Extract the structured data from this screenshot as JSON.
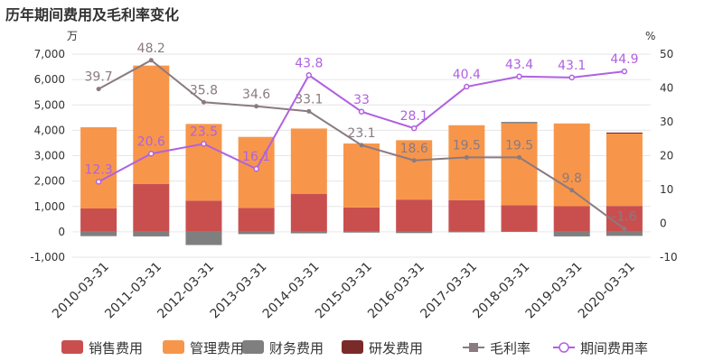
{
  "title": "历年期间费用及毛利率变化",
  "chart_data": {
    "type": "bar",
    "title": "历年期间费用及毛利率变化",
    "categories": [
      "2010-03-31",
      "2011-03-31",
      "2012-03-31",
      "2013-03-31",
      "2014-03-31",
      "2015-03-31",
      "2016-03-31",
      "2017-03-31",
      "2018-03-31",
      "2019-03-31",
      "2020-03-31"
    ],
    "y_left": {
      "unit": "万",
      "ylim": [
        -1000,
        7000
      ],
      "ticks": [
        "-1,000",
        "0",
        "1,000",
        "2,000",
        "3,000",
        "4,000",
        "5,000",
        "6,000",
        "7,000"
      ]
    },
    "y_right": {
      "unit": "%",
      "ylim": [
        -10,
        50
      ],
      "ticks": [
        "-10",
        "0",
        "10",
        "20",
        "30",
        "40",
        "50"
      ]
    },
    "stacked": true,
    "grid": true,
    "legend_position": "bottom",
    "series": [
      {
        "name": "销售费用",
        "kind": "bar",
        "color": "#c94f4f",
        "values": [
          920,
          1880,
          1230,
          940,
          1500,
          960,
          1270,
          1250,
          1050,
          1010,
          1020
        ]
      },
      {
        "name": "管理费用",
        "kind": "bar",
        "color": "#f7964a",
        "values": [
          3200,
          4670,
          3020,
          2800,
          2570,
          2520,
          2340,
          2950,
          3220,
          3260,
          2850
        ]
      },
      {
        "name": "财务费用",
        "kind": "bar",
        "color": "#7f7f7f",
        "values": [
          -170,
          -180,
          -520,
          -90,
          -60,
          -30,
          -50,
          -20,
          60,
          -180,
          -160
        ]
      },
      {
        "name": "研发费用",
        "kind": "bar",
        "color": "#7b2a2a",
        "values": [
          0,
          0,
          0,
          0,
          0,
          0,
          0,
          0,
          0,
          0,
          40
        ]
      },
      {
        "name": "毛利率",
        "kind": "line",
        "axis": "right",
        "color": "#8a7a82",
        "values": [
          39.7,
          48.2,
          35.8,
          34.6,
          33.1,
          23.1,
          18.6,
          19.5,
          19.5,
          9.8,
          -1.6
        ],
        "labels": [
          "39.7",
          "48.2",
          "35.8",
          "34.6",
          "33.1",
          "23.1",
          "18.6",
          "19.5",
          "19.5",
          "9.8",
          "-1.6"
        ]
      },
      {
        "name": "期间费用率",
        "kind": "line",
        "axis": "right",
        "color": "#b061e0",
        "values": [
          12.3,
          20.6,
          23.5,
          16.1,
          43.8,
          33,
          28.1,
          40.4,
          43.4,
          43.1,
          44.9
        ],
        "labels": [
          "12.3",
          "20.6",
          "23.5",
          "16.1",
          "43.8",
          "33",
          "28.1",
          "40.4",
          "43.4",
          "43.1",
          "44.9"
        ]
      }
    ]
  }
}
